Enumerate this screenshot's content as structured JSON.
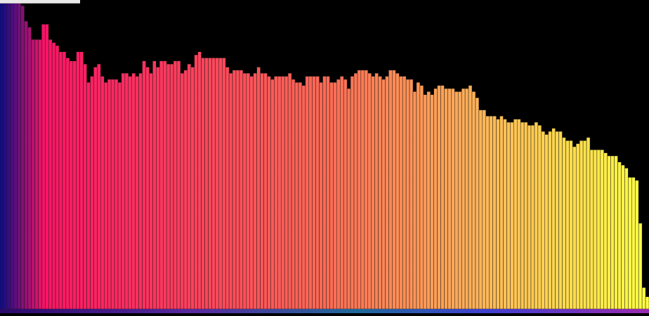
{
  "window": {
    "title": ""
  },
  "colors": {
    "background": "#000000",
    "bar_stroke": "#1a1a1a",
    "gradient_stops": [
      "#0b0b8a",
      "#ff1466",
      "#ff6a55",
      "#ffb858",
      "#ffff44"
    ]
  },
  "chart_data": {
    "type": "bar",
    "title": "",
    "xlabel": "",
    "ylabel": "",
    "grid": false,
    "legend": "none",
    "ylim": [
      0,
      1
    ],
    "values": [
      1.0,
      1.0,
      1.0,
      1.0,
      1.0,
      1.0,
      0.99,
      0.94,
      0.92,
      0.88,
      0.88,
      0.88,
      0.93,
      0.93,
      0.88,
      0.87,
      0.86,
      0.84,
      0.84,
      0.82,
      0.81,
      0.81,
      0.84,
      0.84,
      0.8,
      0.74,
      0.76,
      0.79,
      0.8,
      0.76,
      0.74,
      0.75,
      0.75,
      0.75,
      0.74,
      0.77,
      0.77,
      0.76,
      0.77,
      0.76,
      0.77,
      0.81,
      0.79,
      0.77,
      0.81,
      0.79,
      0.81,
      0.81,
      0.8,
      0.8,
      0.81,
      0.81,
      0.77,
      0.78,
      0.8,
      0.79,
      0.83,
      0.84,
      0.82,
      0.82,
      0.82,
      0.82,
      0.82,
      0.82,
      0.82,
      0.79,
      0.77,
      0.78,
      0.78,
      0.78,
      0.77,
      0.77,
      0.76,
      0.77,
      0.79,
      0.77,
      0.77,
      0.76,
      0.75,
      0.76,
      0.76,
      0.76,
      0.76,
      0.77,
      0.75,
      0.74,
      0.74,
      0.73,
      0.76,
      0.76,
      0.76,
      0.76,
      0.74,
      0.76,
      0.76,
      0.74,
      0.74,
      0.75,
      0.76,
      0.75,
      0.72,
      0.76,
      0.77,
      0.78,
      0.78,
      0.78,
      0.77,
      0.76,
      0.77,
      0.76,
      0.75,
      0.76,
      0.78,
      0.78,
      0.77,
      0.76,
      0.76,
      0.75,
      0.75,
      0.71,
      0.74,
      0.73,
      0.7,
      0.71,
      0.7,
      0.72,
      0.73,
      0.73,
      0.72,
      0.72,
      0.72,
      0.71,
      0.71,
      0.72,
      0.72,
      0.73,
      0.71,
      0.69,
      0.65,
      0.65,
      0.63,
      0.63,
      0.63,
      0.62,
      0.63,
      0.62,
      0.61,
      0.61,
      0.62,
      0.62,
      0.61,
      0.61,
      0.6,
      0.6,
      0.61,
      0.6,
      0.58,
      0.57,
      0.58,
      0.59,
      0.58,
      0.58,
      0.56,
      0.55,
      0.55,
      0.53,
      0.54,
      0.55,
      0.55,
      0.56,
      0.52,
      0.52,
      0.52,
      0.52,
      0.51,
      0.5,
      0.5,
      0.5,
      0.48,
      0.47,
      0.46,
      0.43,
      0.43,
      0.42,
      0.28,
      0.07,
      0.04
    ]
  }
}
